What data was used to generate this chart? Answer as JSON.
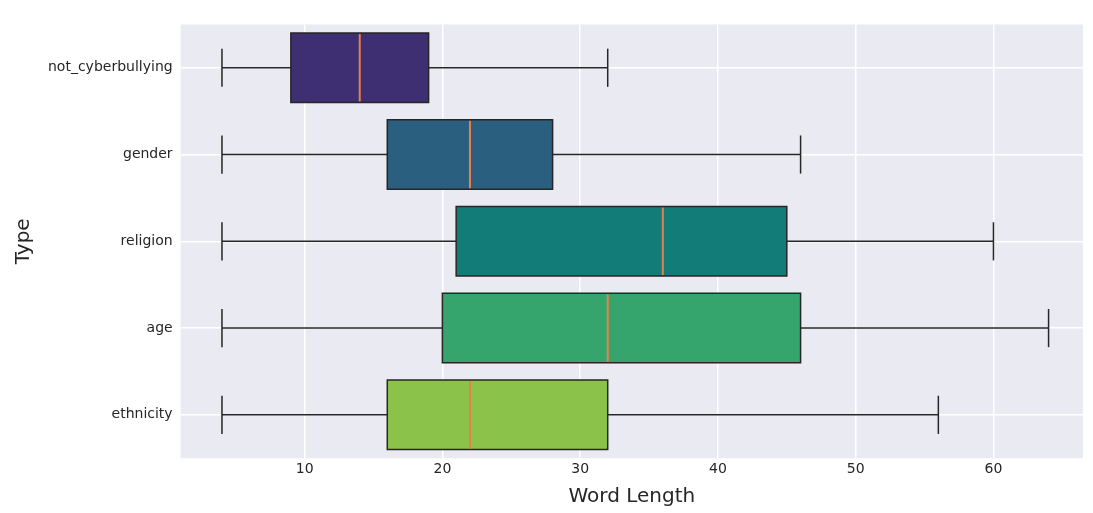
{
  "chart_data": {
    "type": "box",
    "orientation": "horizontal",
    "xlabel": "Word Length",
    "ylabel": "Type",
    "categories": [
      "not_cyberbullying",
      "gender",
      "religion",
      "age",
      "ethnicity"
    ],
    "colors": [
      "#3e2f73",
      "#2a5f7f",
      "#127c79",
      "#35a56d",
      "#8bc34a"
    ],
    "boxes": [
      {
        "low": 4,
        "q1": 9,
        "median": 14,
        "q3": 19,
        "high": 32
      },
      {
        "low": 4,
        "q1": 16,
        "median": 22,
        "q3": 28,
        "high": 46
      },
      {
        "low": 4,
        "q1": 21,
        "median": 36,
        "q3": 45,
        "high": 60
      },
      {
        "low": 4,
        "q1": 20,
        "median": 32,
        "q3": 46,
        "high": 64
      },
      {
        "low": 4,
        "q1": 16,
        "median": 22,
        "q3": 32,
        "high": 56
      }
    ],
    "xlim": [
      1,
      66.5
    ],
    "xticks": [
      10,
      20,
      30,
      40,
      50,
      60
    ],
    "grid": true,
    "legend": false
  }
}
